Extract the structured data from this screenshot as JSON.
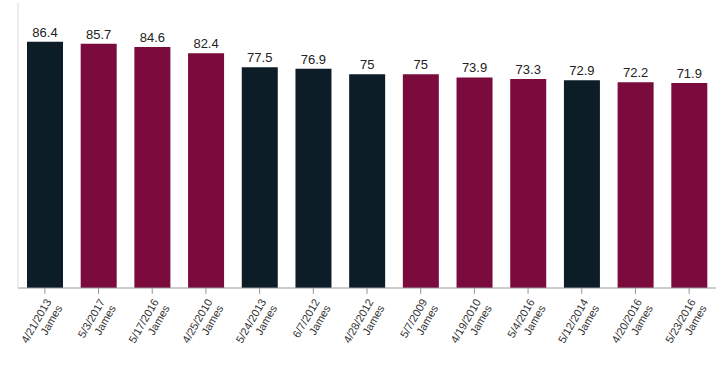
{
  "chart_data": {
    "type": "bar",
    "categories": [
      "4/21/2013\nJames",
      "5/3/2017\nJames",
      "5/17/2016\nJames",
      "4/25/2010\nJames",
      "5/24/2013\nJames",
      "6/7/2012\nJames",
      "4/28/2012\nJames",
      "5/7/2009\nJames",
      "4/19/2010\nJames",
      "5/4/2016\nJames",
      "5/12/2014\nJames",
      "4/20/2016\nJames",
      "5/23/2016\nJames"
    ],
    "values": [
      86.4,
      85.7,
      84.6,
      82.4,
      77.5,
      76.9,
      75,
      75,
      73.9,
      73.3,
      72.9,
      72.2,
      71.9
    ],
    "colors": [
      "#0c1d28",
      "#7b0b3c",
      "#7b0b3c",
      "#7b0b3c",
      "#0c1d28",
      "#0c1d28",
      "#0c1d28",
      "#7b0b3c",
      "#7b0b3c",
      "#7b0b3c",
      "#0c1d28",
      "#7b0b3c",
      "#7b0b3c"
    ],
    "ylim": [
      0,
      100
    ],
    "yticks": [
      0,
      100
    ],
    "grid": false,
    "data_labels": true,
    "tick_labels": "x"
  }
}
